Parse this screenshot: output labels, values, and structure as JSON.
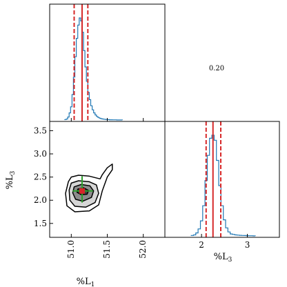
{
  "chart_data": [
    {
      "type": "histogram",
      "panel": "top-left",
      "xlim": [
        50.7,
        52.3
      ],
      "bin_centers": [
        50.92,
        50.94,
        50.96,
        50.98,
        51.0,
        51.02,
        51.04,
        51.06,
        51.08,
        51.1,
        51.12,
        51.14,
        51.16,
        51.18,
        51.2,
        51.22,
        51.24,
        51.26,
        51.28,
        51.3,
        51.32,
        51.34,
        51.36,
        51.38,
        51.4,
        51.42,
        51.44,
        51.46,
        51.48,
        51.5,
        51.52,
        51.54,
        51.56,
        51.58,
        51.6,
        51.62,
        51.64,
        51.66,
        51.68,
        51.7
      ],
      "counts": [
        0.005,
        0.01,
        0.03,
        0.07,
        0.13,
        0.25,
        0.42,
        0.62,
        0.8,
        0.93,
        1.0,
        0.97,
        0.86,
        0.68,
        0.52,
        0.38,
        0.27,
        0.2,
        0.14,
        0.1,
        0.07,
        0.05,
        0.035,
        0.025,
        0.018,
        0.013,
        0.01,
        0.008,
        0.006,
        0.005,
        0.004,
        0.003,
        0.003,
        0.002,
        0.002,
        0.002,
        0.001,
        0.001,
        0.001,
        0.001
      ],
      "median": 51.15,
      "lower": 51.04,
      "upper": 51.23
    },
    {
      "type": "histogram",
      "panel": "bottom-right",
      "xlabel": "%L3",
      "xlim": [
        1.2,
        3.7
      ],
      "xticks": [
        "2",
        "3"
      ],
      "bin_centers": [
        1.8,
        1.85,
        1.9,
        1.95,
        2.0,
        2.05,
        2.1,
        2.15,
        2.2,
        2.25,
        2.3,
        2.35,
        2.4,
        2.45,
        2.5,
        2.55,
        2.6,
        2.65,
        2.7,
        2.75,
        2.8,
        2.85,
        2.9,
        2.95,
        3.0,
        3.05,
        3.1,
        3.15
      ],
      "counts": [
        0.005,
        0.01,
        0.03,
        0.07,
        0.15,
        0.3,
        0.55,
        0.8,
        0.97,
        1.0,
        0.95,
        0.75,
        0.5,
        0.3,
        0.16,
        0.08,
        0.04,
        0.02,
        0.015,
        0.01,
        0.008,
        0.006,
        0.005,
        0.004,
        0.003,
        0.002,
        0.002,
        0.001
      ],
      "median": 2.25,
      "lower": 2.1,
      "upper": 2.42
    },
    {
      "type": "contour",
      "panel": "bottom-left",
      "xlabel": "%L1",
      "ylabel": "%L3",
      "xlim": [
        50.7,
        52.3
      ],
      "ylim": [
        1.2,
        3.7
      ],
      "xticks": [
        "51.0",
        "51.5",
        "52.0"
      ],
      "yticks": [
        "1.5",
        "2.0",
        "2.5",
        "3.0",
        "3.5"
      ],
      "contours": [
        [
          [
            51.0,
            2.5
          ],
          [
            51.1,
            2.54
          ],
          [
            51.25,
            2.52
          ],
          [
            51.4,
            2.46
          ],
          [
            51.43,
            2.55
          ],
          [
            51.5,
            2.7
          ],
          [
            51.57,
            2.78
          ],
          [
            51.57,
            2.66
          ],
          [
            51.5,
            2.5
          ],
          [
            51.43,
            2.2
          ],
          [
            51.38,
            1.9
          ],
          [
            51.25,
            1.77
          ],
          [
            51.05,
            1.75
          ],
          [
            50.94,
            1.88
          ],
          [
            50.92,
            2.15
          ],
          [
            50.96,
            2.4
          ]
        ],
        [
          [
            51.0,
            2.37
          ],
          [
            51.1,
            2.42
          ],
          [
            51.25,
            2.4
          ],
          [
            51.35,
            2.33
          ],
          [
            51.38,
            2.15
          ],
          [
            51.33,
            1.95
          ],
          [
            51.2,
            1.85
          ],
          [
            51.05,
            1.87
          ],
          [
            50.98,
            2.0
          ],
          [
            50.97,
            2.22
          ]
        ],
        [
          [
            51.04,
            2.29
          ],
          [
            51.14,
            2.34
          ],
          [
            51.26,
            2.31
          ],
          [
            51.31,
            2.2
          ],
          [
            51.28,
            2.06
          ],
          [
            51.16,
            1.98
          ],
          [
            51.06,
            2.02
          ],
          [
            51.02,
            2.16
          ]
        ],
        [
          [
            51.09,
            2.24
          ],
          [
            51.17,
            2.27
          ],
          [
            51.24,
            2.21
          ],
          [
            51.22,
            2.13
          ],
          [
            51.14,
            2.12
          ],
          [
            51.08,
            2.17
          ]
        ]
      ],
      "contour_fills": [
        "#ffffff",
        "#d6d6d6",
        "#8c8c8c",
        "#404040"
      ],
      "marker": {
        "x": 51.15,
        "y": 2.2
      },
      "crosshair_x": [
        51.02,
        51.3
      ],
      "crosshair_y": [
        1.95,
        2.52
      ]
    },
    {
      "type": "text",
      "panel": "top-right",
      "value": "0.20"
    }
  ],
  "colors": {
    "histogram": "#1f77b4",
    "median_line": "#d62728",
    "crosshair": "#2ca02c",
    "contour_line": "#000000"
  }
}
